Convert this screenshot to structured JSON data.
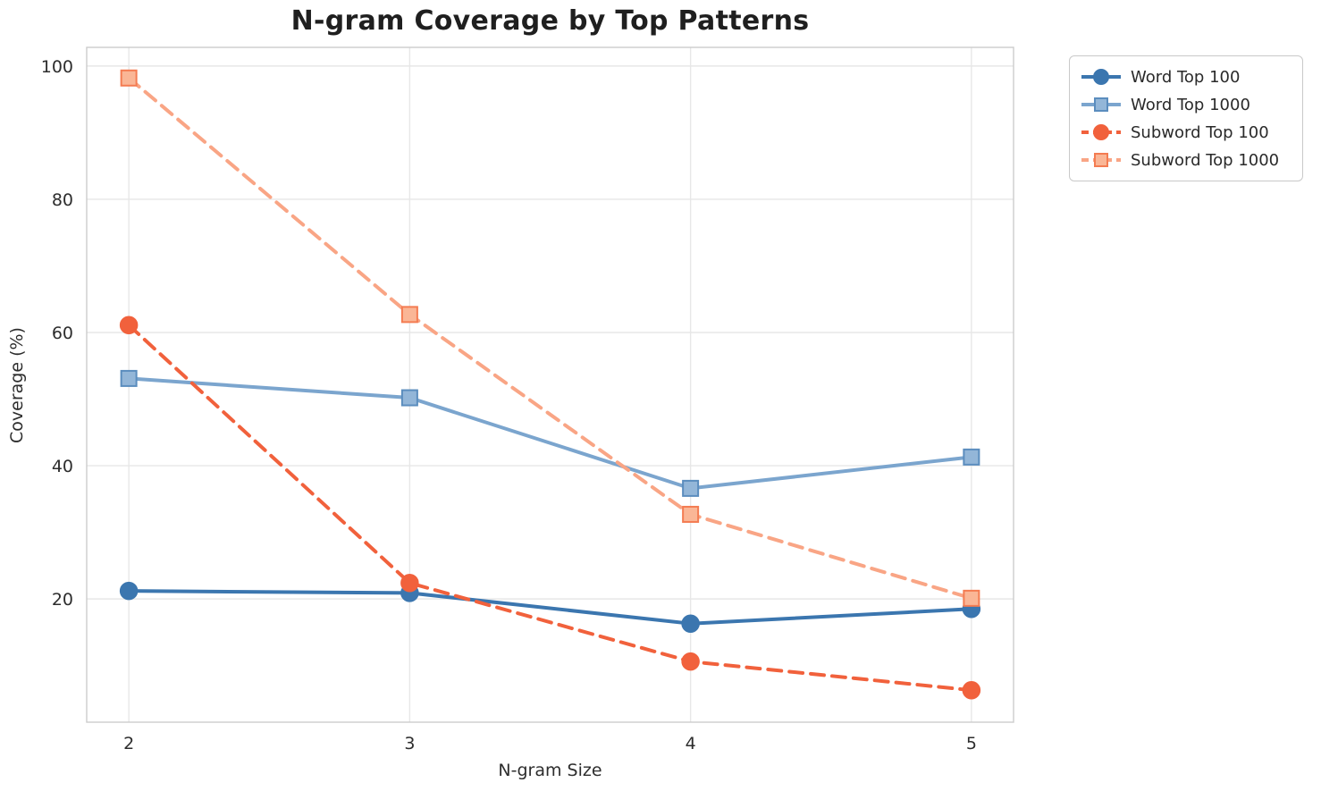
{
  "title": "N-gram Coverage by Top Patterns",
  "chart_data": {
    "type": "line",
    "title": "N-gram Coverage by Top Patterns",
    "xlabel": "N-gram Size",
    "ylabel": "Coverage (%)",
    "x": [
      2,
      3,
      4,
      5
    ],
    "xticks": [
      "2",
      "3",
      "4",
      "5"
    ],
    "yticks": [
      20,
      40,
      60,
      80,
      100
    ],
    "xlim": [
      1.85,
      5.15
    ],
    "ylim": [
      1.5,
      102.8
    ],
    "grid": true,
    "legend_position": "outside-top-right",
    "colors": {
      "grid": "#e7e7e7",
      "spine": "#cccccc",
      "tick_label": "#2d2d2d",
      "title": "#1f1f1f"
    },
    "series": [
      {
        "name": "Word Top 100",
        "values": [
          21.2,
          20.9,
          16.3,
          18.5
        ],
        "color": "#3b76af",
        "marker": "circle",
        "marker_fill": "#3b76af",
        "marker_edge": "#3b76af",
        "dashed": false
      },
      {
        "name": "Word Top 1000",
        "values": [
          53.1,
          50.2,
          36.6,
          41.3
        ],
        "color": "#7ba5ce",
        "marker": "square",
        "marker_fill": "#93b6d8",
        "marker_edge": "#5b8dbe",
        "dashed": false
      },
      {
        "name": "Subword Top 100",
        "values": [
          61.1,
          22.4,
          10.6,
          6.3
        ],
        "color": "#f1613c",
        "marker": "circle",
        "marker_fill": "#f1613c",
        "marker_edge": "#f1613c",
        "dashed": true
      },
      {
        "name": "Subword Top 1000",
        "values": [
          98.2,
          62.7,
          32.7,
          20.1
        ],
        "color": "#f9a585",
        "marker": "square",
        "marker_fill": "#fab696",
        "marker_edge": "#f47c52",
        "dashed": true
      }
    ]
  }
}
